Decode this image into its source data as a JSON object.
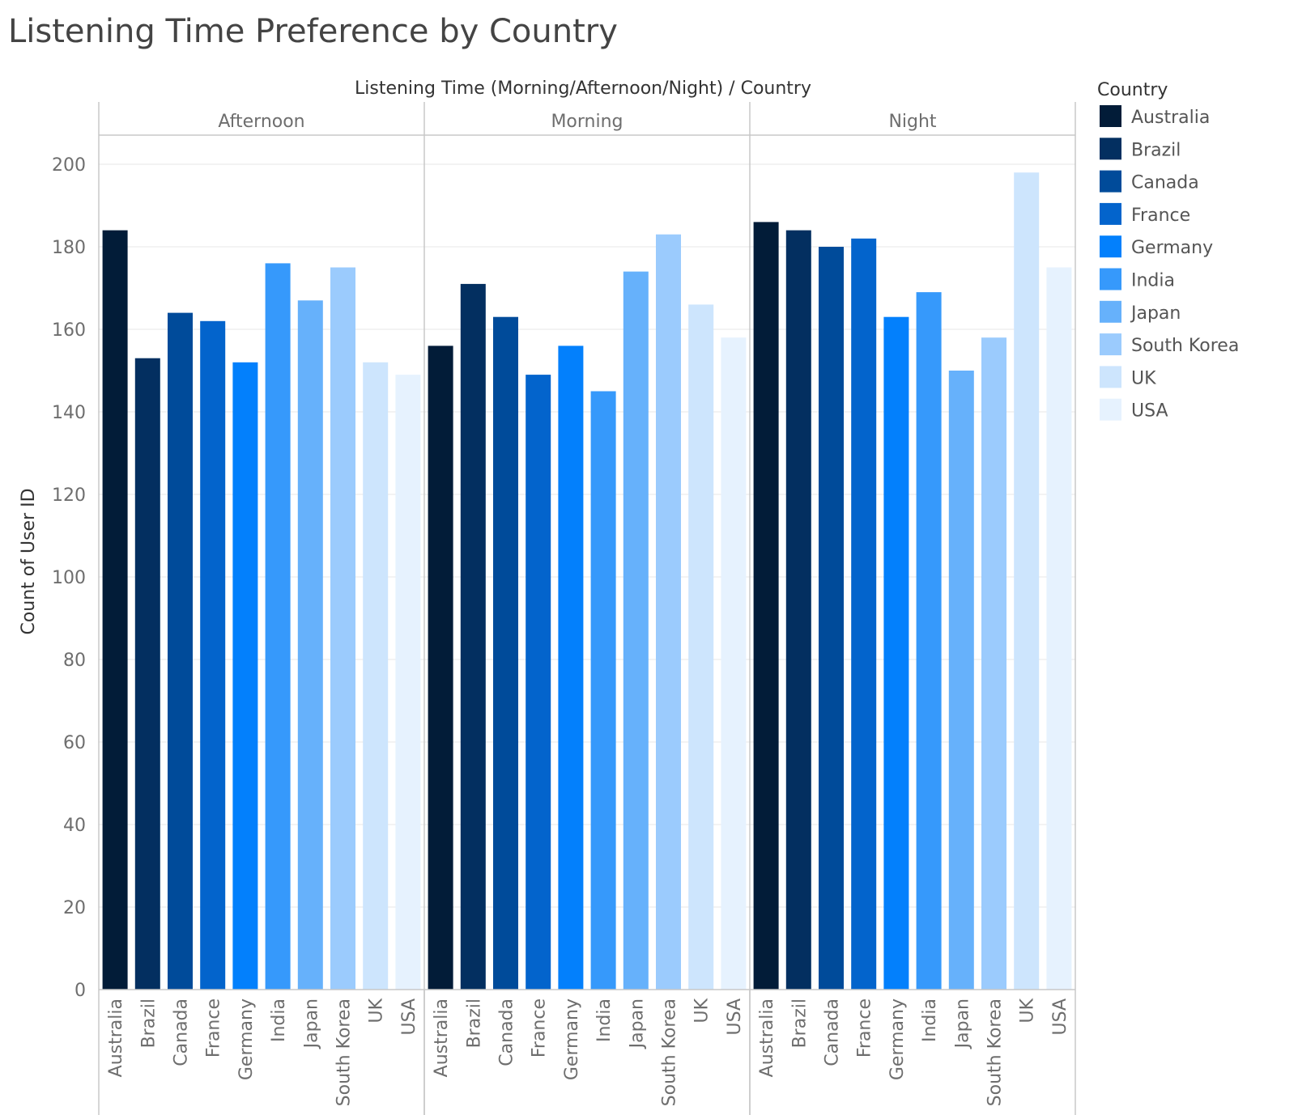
{
  "chart_data": {
    "type": "bar",
    "title": "Listening Time Preference by Country",
    "column_header": "Listening Time (Morning/Afternoon/Night)  /  Country",
    "ylabel": "Count of User ID",
    "ylim": [
      0,
      210
    ],
    "yticks": [
      0,
      20,
      40,
      60,
      80,
      100,
      120,
      140,
      160,
      180,
      200
    ],
    "grid": true,
    "legend": {
      "title": "Country",
      "placement": "right",
      "items": [
        {
          "label": "Australia",
          "color": "#021c38"
        },
        {
          "label": "Brazil",
          "color": "#032f60"
        },
        {
          "label": "Canada",
          "color": "#004b9a"
        },
        {
          "label": "France",
          "color": "#0364cc"
        },
        {
          "label": "Germany",
          "color": "#0380fc"
        },
        {
          "label": "India",
          "color": "#3699fb"
        },
        {
          "label": "Japan",
          "color": "#66b1fb"
        },
        {
          "label": "South Korea",
          "color": "#9bcbfd"
        },
        {
          "label": "UK",
          "color": "#cde5fd"
        },
        {
          "label": "USA",
          "color": "#e6f2fe"
        }
      ]
    },
    "categories": [
      "Australia",
      "Brazil",
      "Canada",
      "France",
      "Germany",
      "India",
      "Japan",
      "South Korea",
      "UK",
      "USA"
    ],
    "facets": [
      {
        "name": "Afternoon",
        "values": [
          184,
          153,
          164,
          162,
          152,
          176,
          167,
          175,
          152,
          149
        ]
      },
      {
        "name": "Morning",
        "values": [
          156,
          171,
          163,
          149,
          156,
          145,
          174,
          183,
          166,
          158
        ]
      },
      {
        "name": "Night",
        "values": [
          186,
          184,
          180,
          182,
          163,
          169,
          150,
          158,
          198,
          175
        ]
      }
    ]
  }
}
